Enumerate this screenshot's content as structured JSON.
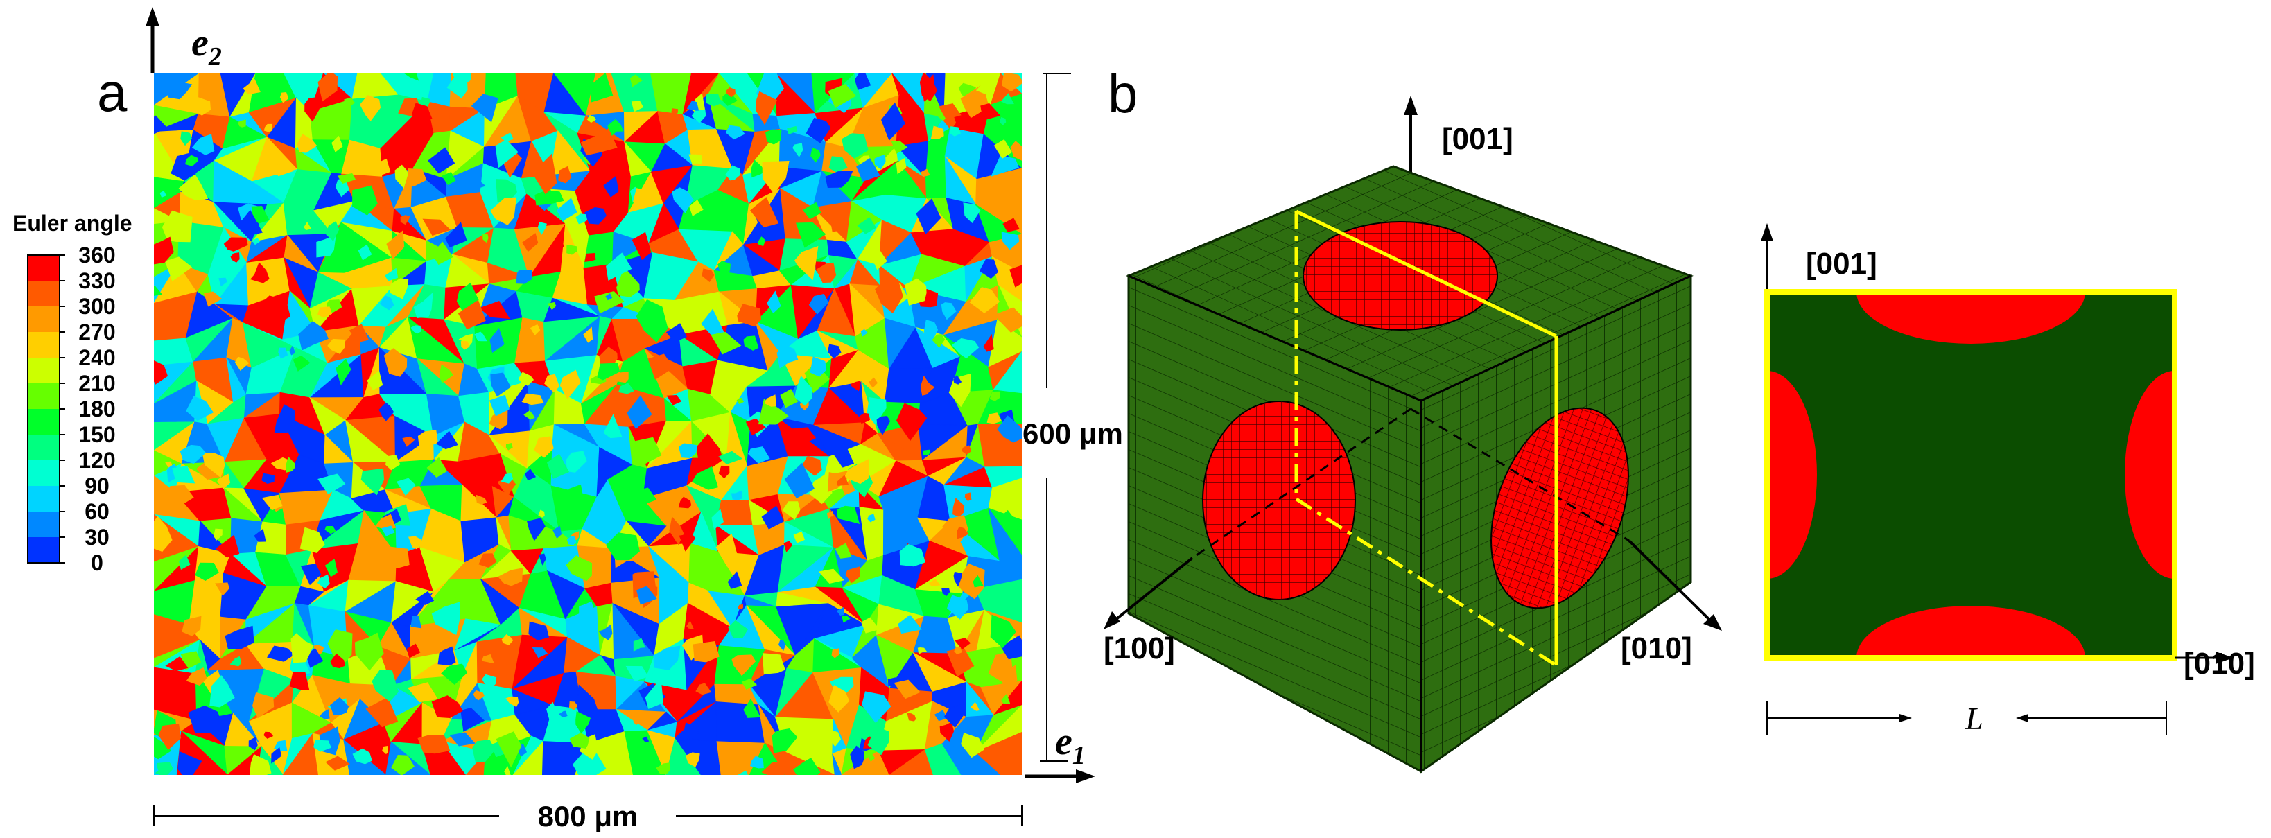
{
  "panel_a": {
    "label": "a",
    "axis_e1": "e",
    "axis_e1_sub": "1",
    "axis_e2": "e",
    "axis_e2_sub": "2",
    "dim_width": "800 μm",
    "dim_height": "600 μm",
    "legend": {
      "title": "Euler angle",
      "ticks": [
        "360",
        "330",
        "300",
        "270",
        "240",
        "210",
        "180",
        "150",
        "120",
        "90",
        "60",
        "30",
        "0"
      ],
      "colors": [
        "#ff0000",
        "#ff5a00",
        "#ff9a00",
        "#ffcf00",
        "#ccff00",
        "#66ff00",
        "#00ff2a",
        "#00ff80",
        "#00ffd2",
        "#00d4ff",
        "#0088ff",
        "#0033ff"
      ]
    },
    "grain_palette": [
      "#ff0000",
      "#ff5a00",
      "#ff9a00",
      "#ffcf00",
      "#ccff00",
      "#66ff00",
      "#00ff2a",
      "#00ff80",
      "#00ffd2",
      "#00d4ff",
      "#0088ff",
      "#0033ff"
    ]
  },
  "panel_b": {
    "label": "b",
    "axis_001": "[001]",
    "axis_100": "[100]",
    "axis_010": "[010]",
    "colors": {
      "matrix": "#2e6e10",
      "matrix_dark": "#0b4d00",
      "inclusion": "#ff0000",
      "section": "#ffff00"
    }
  },
  "panel_c": {
    "axis_001": "[001]",
    "axis_010": "[010]",
    "length_label": "L"
  }
}
